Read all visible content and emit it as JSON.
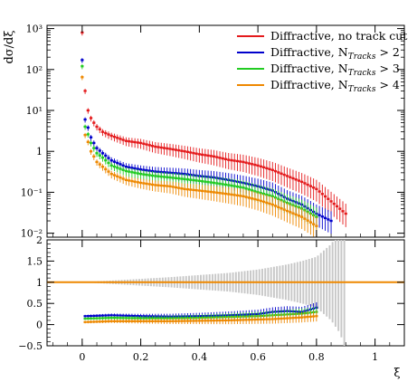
{
  "chart_data": [
    {
      "type": "scatter",
      "panel": "main",
      "ylabel": "dσ/dξ",
      "yscale": "log",
      "ylim": [
        0.008,
        1200
      ],
      "xlim": [
        -0.12,
        1.1
      ],
      "yticks": [
        0.01,
        0.1,
        1,
        10,
        100,
        1000
      ],
      "yticklabels": [
        "10⁻²",
        "10⁻¹",
        "1",
        "10¹",
        "10²",
        "10³"
      ],
      "grid": false,
      "legend": {
        "placement": "top-right",
        "entries": [
          {
            "label_plain": "Diffractive, no track cut",
            "label_pre": "Diffractive, no track cut",
            "label_sub": "",
            "label_post": "",
            "color": "#e41a1c"
          },
          {
            "label_plain": "Diffractive, N_Tracks > 2",
            "label_pre": "Diffractive, N",
            "label_sub": "Tracks",
            "label_post": " > 2",
            "color": "#0000cc"
          },
          {
            "label_plain": "Diffractive, N_Tracks > 3",
            "label_pre": "Diffractive, N",
            "label_sub": "Tracks",
            "label_post": " > 3",
            "color": "#22cc22"
          },
          {
            "label_plain": "Diffractive, N_Tracks > 4",
            "label_pre": "Diffractive, N",
            "label_sub": "Tracks",
            "label_post": " > 4",
            "color": "#ee8800"
          }
        ]
      },
      "series": [
        {
          "name": "Diffractive, no track cut",
          "color": "#e41a1c",
          "x": [
            0.0,
            0.01,
            0.02,
            0.03,
            0.04,
            0.05,
            0.07,
            0.1,
            0.15,
            0.2,
            0.25,
            0.3,
            0.35,
            0.4,
            0.45,
            0.5,
            0.55,
            0.6,
            0.65,
            0.7,
            0.75,
            0.8,
            0.85,
            0.9
          ],
          "y": [
            800,
            30,
            10,
            6.5,
            5,
            4,
            3,
            2.4,
            1.8,
            1.6,
            1.3,
            1.15,
            1.0,
            0.85,
            0.75,
            0.62,
            0.55,
            0.45,
            0.35,
            0.25,
            0.18,
            0.12,
            0.06,
            0.03
          ]
        },
        {
          "name": "Diffractive, N_Tracks > 2",
          "color": "#0000cc",
          "x": [
            0.0,
            0.01,
            0.02,
            0.03,
            0.04,
            0.05,
            0.07,
            0.1,
            0.15,
            0.2,
            0.25,
            0.3,
            0.35,
            0.4,
            0.45,
            0.5,
            0.55,
            0.6,
            0.65,
            0.7,
            0.75,
            0.8,
            0.85
          ],
          "y": [
            170,
            6,
            3.8,
            2.2,
            1.6,
            1.2,
            0.9,
            0.6,
            0.42,
            0.36,
            0.32,
            0.3,
            0.28,
            0.25,
            0.23,
            0.2,
            0.17,
            0.14,
            0.11,
            0.07,
            0.05,
            0.03,
            0.02
          ]
        },
        {
          "name": "Diffractive, N_Tracks > 3",
          "color": "#22cc22",
          "x": [
            0.0,
            0.01,
            0.02,
            0.03,
            0.04,
            0.05,
            0.07,
            0.1,
            0.15,
            0.2,
            0.25,
            0.3,
            0.35,
            0.4,
            0.45,
            0.5,
            0.55,
            0.6,
            0.65,
            0.7,
            0.75,
            0.8
          ],
          "y": [
            120,
            4,
            2.6,
            1.6,
            1.2,
            0.9,
            0.7,
            0.45,
            0.33,
            0.28,
            0.25,
            0.23,
            0.21,
            0.19,
            0.17,
            0.15,
            0.13,
            0.1,
            0.08,
            0.055,
            0.04,
            0.025
          ]
        },
        {
          "name": "Diffractive, N_Tracks > 4",
          "color": "#ee8800",
          "x": [
            0.0,
            0.01,
            0.02,
            0.03,
            0.04,
            0.05,
            0.07,
            0.1,
            0.15,
            0.2,
            0.25,
            0.3,
            0.35,
            0.4,
            0.45,
            0.5,
            0.55,
            0.6,
            0.65,
            0.7,
            0.75,
            0.8
          ],
          "y": [
            65,
            2.5,
            1.7,
            1.0,
            0.75,
            0.55,
            0.42,
            0.28,
            0.2,
            0.17,
            0.15,
            0.14,
            0.12,
            0.11,
            0.1,
            0.09,
            0.08,
            0.065,
            0.05,
            0.035,
            0.025,
            0.015
          ]
        }
      ]
    },
    {
      "type": "scatter",
      "panel": "ratio",
      "xlabel": "ξ",
      "ylim": [
        -0.5,
        2
      ],
      "xlim": [
        -0.12,
        1.1
      ],
      "yticks": [
        -0.5,
        0,
        0.5,
        1,
        1.5,
        2
      ],
      "yticklabels": [
        "−0.5",
        "0",
        "0.5",
        "1",
        "1.5",
        "2"
      ],
      "xticks": [
        0,
        0.2,
        0.4,
        0.6,
        0.8,
        1
      ],
      "xticklabels": [
        "0",
        "0.2",
        "0.4",
        "0.6",
        "0.8",
        "1"
      ],
      "reference_line": 1,
      "uncertainty_band": {
        "color": "#c8c8c8",
        "x": [
          0.0,
          0.1,
          0.2,
          0.3,
          0.4,
          0.5,
          0.6,
          0.7,
          0.75,
          0.8,
          0.85,
          0.88,
          0.9
        ],
        "halfwidth": [
          0.0,
          0.04,
          0.08,
          0.12,
          0.17,
          0.22,
          0.3,
          0.42,
          0.5,
          0.6,
          0.9,
          1.2,
          1.6
        ]
      },
      "series": [
        {
          "name": "Diffractive, N_Tracks > 2",
          "color": "#0000cc",
          "x": [
            0.01,
            0.1,
            0.2,
            0.3,
            0.4,
            0.5,
            0.6,
            0.65,
            0.7,
            0.75,
            0.8
          ],
          "y": [
            0.2,
            0.22,
            0.2,
            0.19,
            0.2,
            0.22,
            0.25,
            0.3,
            0.32,
            0.3,
            0.4
          ]
        },
        {
          "name": "Diffractive, N_Tracks > 3",
          "color": "#22cc22",
          "x": [
            0.01,
            0.1,
            0.2,
            0.3,
            0.4,
            0.5,
            0.6,
            0.65,
            0.7,
            0.75,
            0.8
          ],
          "y": [
            0.14,
            0.16,
            0.15,
            0.15,
            0.16,
            0.18,
            0.2,
            0.22,
            0.24,
            0.26,
            0.3
          ]
        },
        {
          "name": "Diffractive, N_Tracks > 4",
          "color": "#ee8800",
          "x": [
            0.01,
            0.1,
            0.2,
            0.3,
            0.4,
            0.5,
            0.6,
            0.65,
            0.7,
            0.75,
            0.8
          ],
          "y": [
            0.06,
            0.08,
            0.08,
            0.08,
            0.09,
            0.1,
            0.12,
            0.13,
            0.15,
            0.17,
            0.2
          ]
        }
      ]
    }
  ]
}
